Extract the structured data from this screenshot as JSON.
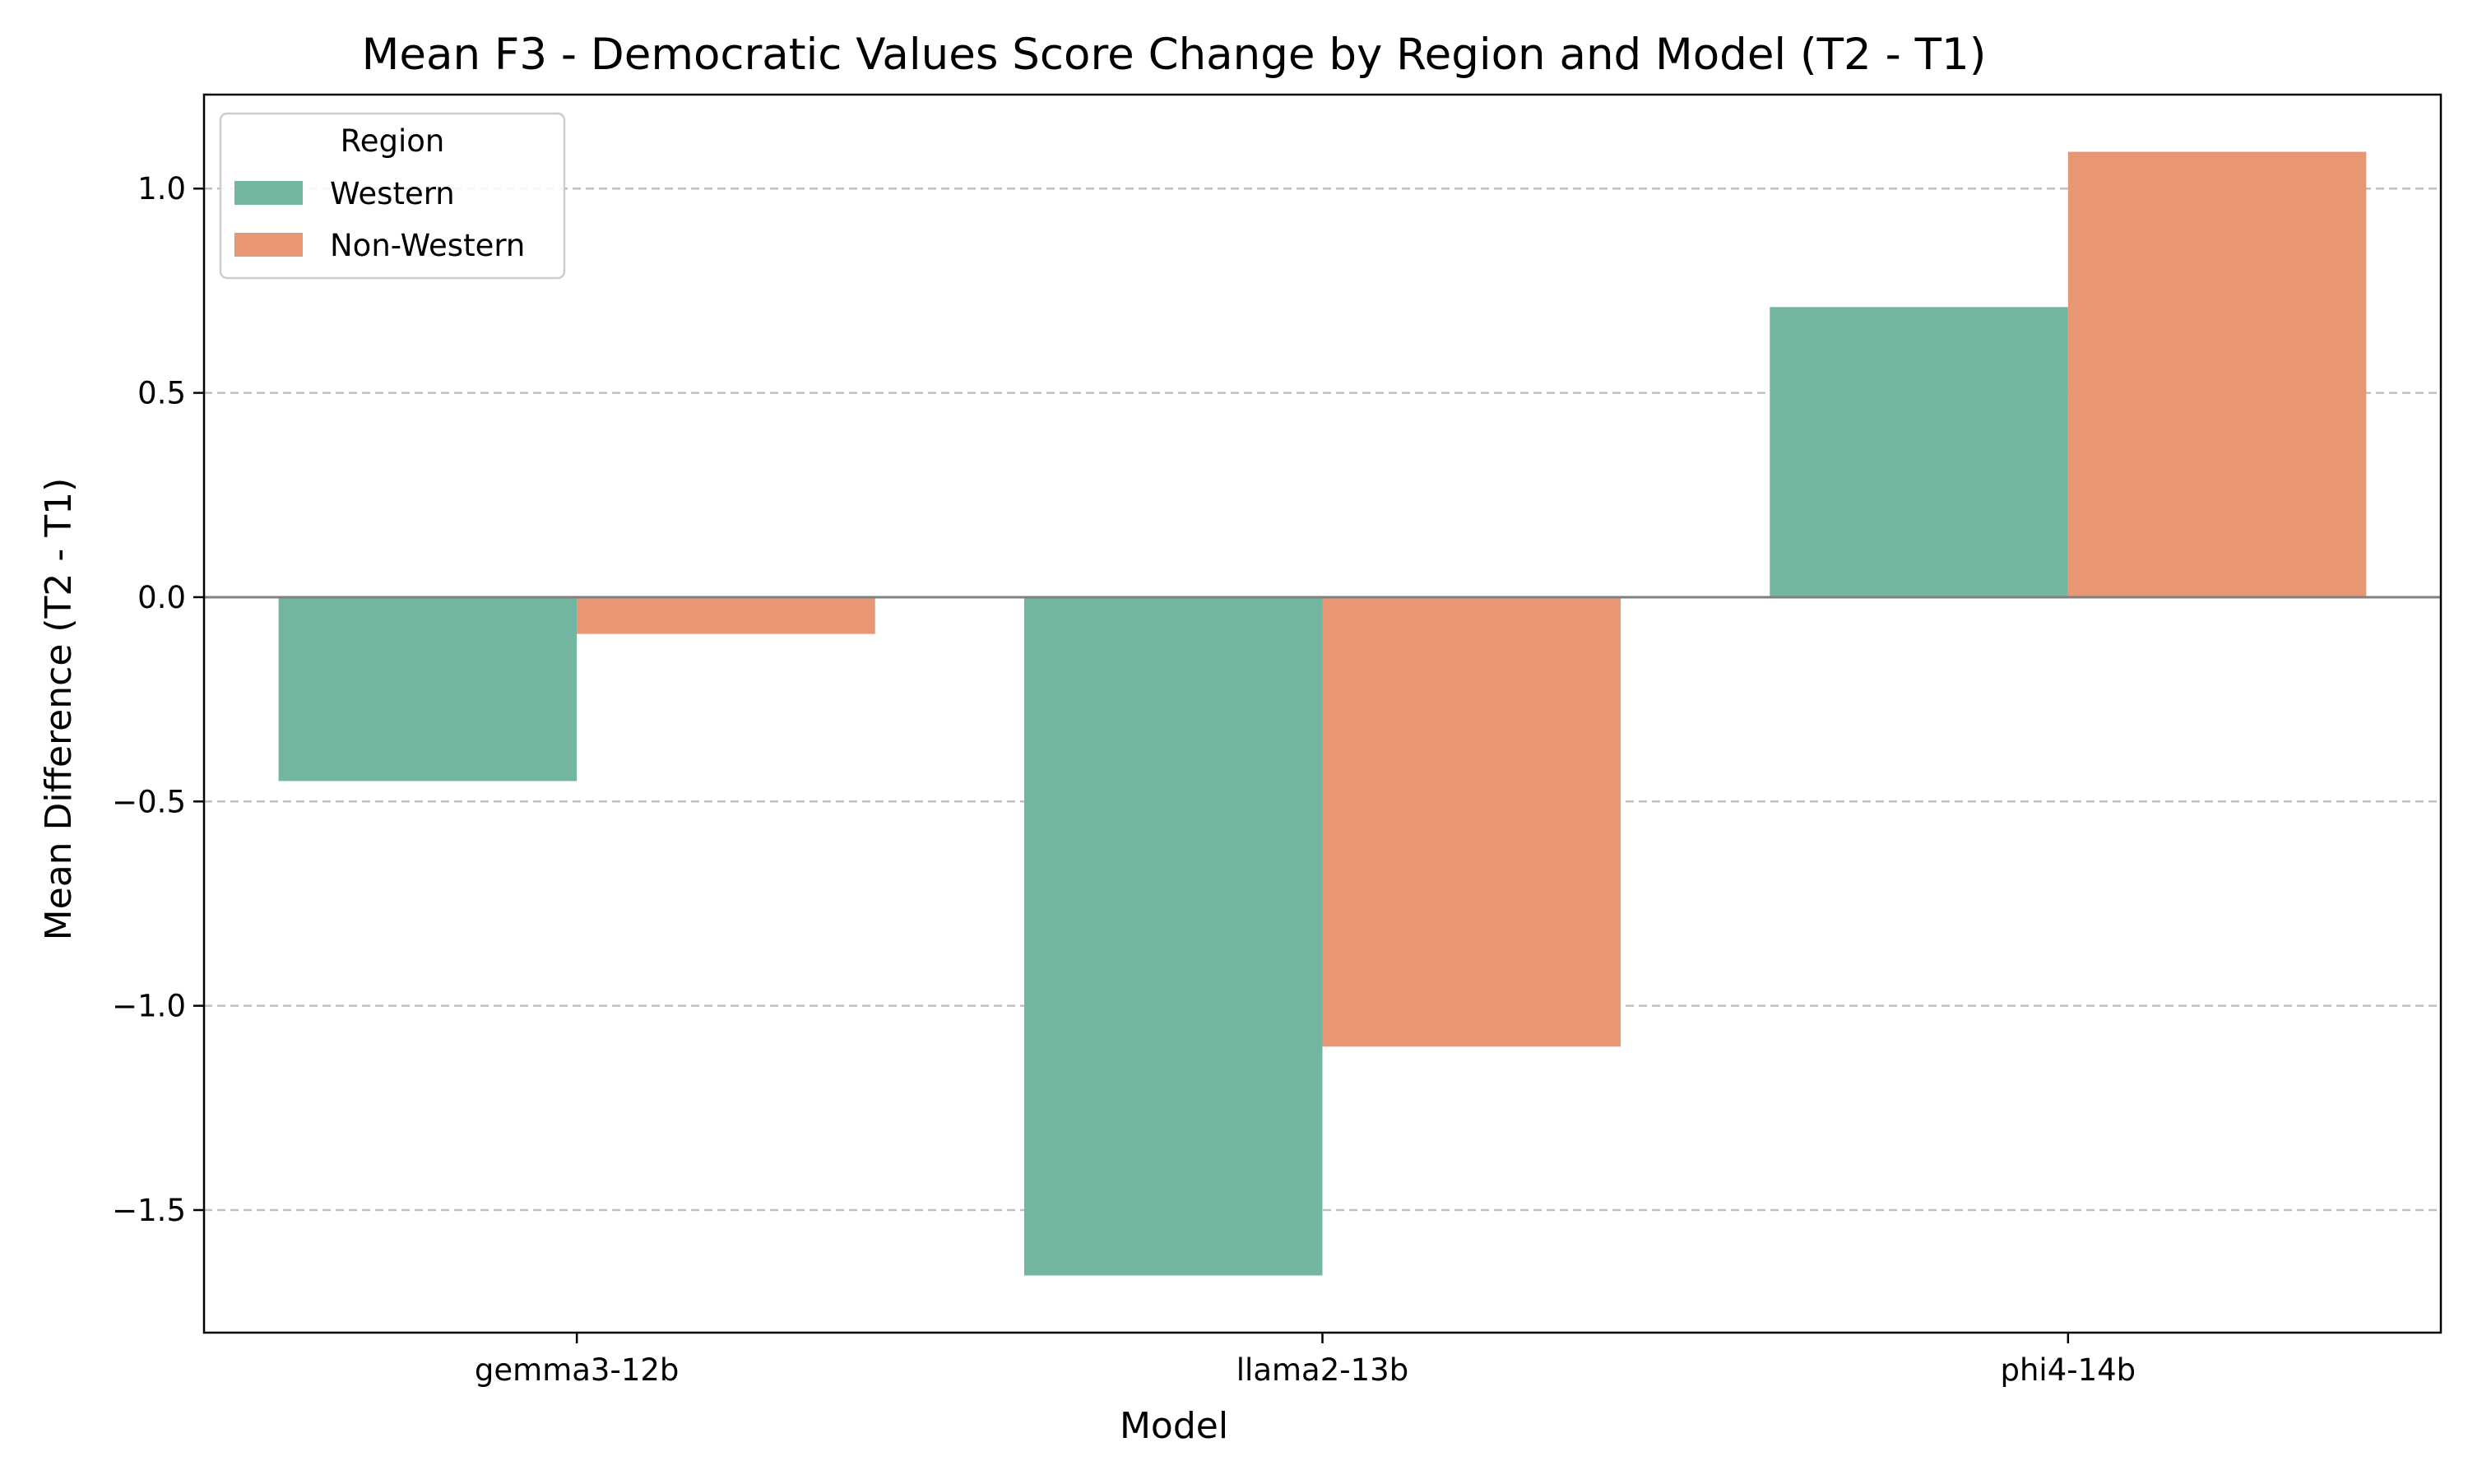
{
  "chart_data": {
    "type": "bar",
    "title": "Mean F3 - Democratic Values Score Change by Region and Model (T2 - T1)",
    "xlabel": "Model",
    "ylabel": "Mean Difference (T2 - T1)",
    "categories": [
      "gemma3-12b",
      "llama2-13b",
      "phi4-14b"
    ],
    "series": [
      {
        "name": "Western",
        "color": "#72b6a1",
        "values": [
          -0.45,
          -1.66,
          0.71
        ]
      },
      {
        "name": "Non-Western",
        "color": "#e99675",
        "values": [
          -0.09,
          -1.1,
          1.09
        ]
      }
    ],
    "ylim": [
      -1.8,
      1.23
    ],
    "yticks": [
      -1.5,
      -1.0,
      -0.5,
      0.0,
      0.5,
      1.0
    ],
    "ytick_labels": [
      "−1.5",
      "−1.0",
      "−0.5",
      "0.0",
      "0.5",
      "1.0"
    ],
    "grid": "y-dashed",
    "zero_line": true,
    "legend": {
      "title": "Region",
      "placement": "top-left"
    }
  }
}
